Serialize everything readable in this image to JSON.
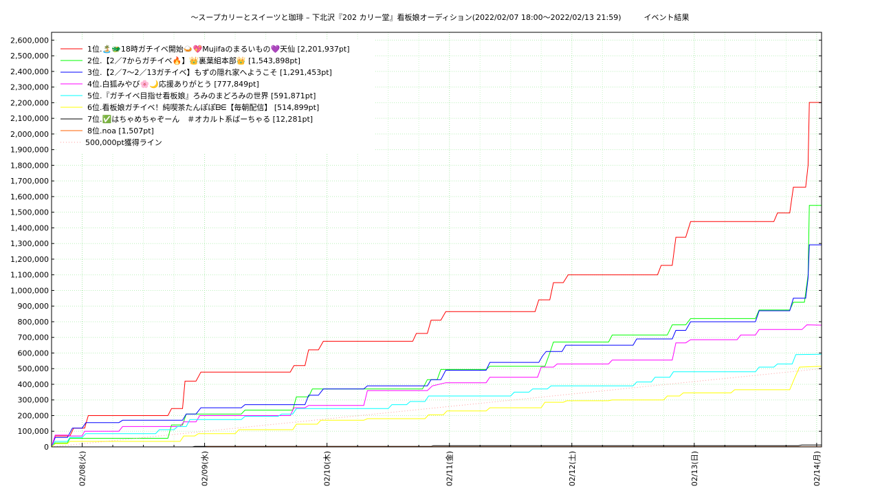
{
  "chart_data": {
    "type": "line",
    "title": "〜スープカリーとスイーツと珈琲 – 下北沢『202 カリー堂』看板娘オーディション(2022/02/07 18:00〜2022/02/13 21:59)　　　イベント結果",
    "xlabel": "",
    "ylabel": "",
    "x_ticks": [
      "02/08(火)",
      "02/09(水)",
      "02/10(木)",
      "02/11(金)",
      "02/12(土)",
      "02/13(日)",
      "02/14(月)"
    ],
    "y_ticks": [
      "0",
      "100,000",
      "200,000",
      "300,000",
      "400,000",
      "500,000",
      "600,000",
      "700,000",
      "800,000",
      "900,000",
      "1,000,000",
      "1,100,000",
      "1,200,000",
      "1,300,000",
      "1,400,000",
      "1,500,000",
      "1,600,000",
      "1,700,000",
      "1,800,000",
      "1,900,000",
      "2,000,000",
      "2,100,000",
      "2,200,000",
      "2,300,000",
      "2,400,000",
      "2,500,000",
      "2,600,000"
    ],
    "xlim_days": [
      -0.25,
      6.04
    ],
    "ylim": [
      0,
      2650000
    ],
    "grid": true,
    "legend_position": "top-left",
    "series": [
      {
        "name": "1位.🏝️🐲18時ガチイベ開始🍛💖Mujifaのまるいもの💜天仙 [2,201,937pt]",
        "color": "#ff0000",
        "points": [
          [
            -0.25,
            0
          ],
          [
            -0.22,
            70000
          ],
          [
            -0.1,
            70000
          ],
          [
            -0.07,
            120000
          ],
          [
            0.02,
            120000
          ],
          [
            0.05,
            200000
          ],
          [
            0.7,
            200000
          ],
          [
            0.73,
            245000
          ],
          [
            0.82,
            245000
          ],
          [
            0.84,
            420000
          ],
          [
            0.93,
            420000
          ],
          [
            0.97,
            478000
          ],
          [
            1.7,
            478000
          ],
          [
            1.73,
            520000
          ],
          [
            1.82,
            520000
          ],
          [
            1.85,
            620000
          ],
          [
            1.93,
            620000
          ],
          [
            1.97,
            675000
          ],
          [
            2.7,
            675000
          ],
          [
            2.73,
            725000
          ],
          [
            2.82,
            725000
          ],
          [
            2.85,
            810000
          ],
          [
            2.93,
            810000
          ],
          [
            2.97,
            865000
          ],
          [
            3.7,
            865000
          ],
          [
            3.73,
            940000
          ],
          [
            3.82,
            940000
          ],
          [
            3.85,
            1050000
          ],
          [
            3.93,
            1050000
          ],
          [
            3.97,
            1100000
          ],
          [
            4.7,
            1100000
          ],
          [
            4.73,
            1160000
          ],
          [
            4.82,
            1160000
          ],
          [
            4.85,
            1340000
          ],
          [
            4.93,
            1340000
          ],
          [
            4.97,
            1440000
          ],
          [
            5.65,
            1440000
          ],
          [
            5.68,
            1495000
          ],
          [
            5.78,
            1495000
          ],
          [
            5.81,
            1660000
          ],
          [
            5.91,
            1660000
          ],
          [
            5.93,
            1800000
          ],
          [
            5.94,
            2201937
          ],
          [
            6.04,
            2201937
          ]
        ]
      },
      {
        "name": "2位.【2／7からガチイベ🔥】👑裏葉組本部👑 [1,543,898pt]",
        "color": "#00ff00",
        "points": [
          [
            -0.25,
            0
          ],
          [
            -0.22,
            25000
          ],
          [
            -0.12,
            25000
          ],
          [
            -0.1,
            55000
          ],
          [
            0.7,
            55000
          ],
          [
            0.73,
            140000
          ],
          [
            0.82,
            140000
          ],
          [
            0.85,
            210000
          ],
          [
            1.3,
            210000
          ],
          [
            1.33,
            235000
          ],
          [
            1.72,
            235000
          ],
          [
            1.75,
            320000
          ],
          [
            1.85,
            320000
          ],
          [
            1.88,
            370000
          ],
          [
            2.78,
            370000
          ],
          [
            2.82,
            430000
          ],
          [
            2.9,
            430000
          ],
          [
            2.93,
            495000
          ],
          [
            3.3,
            495000
          ],
          [
            3.33,
            515000
          ],
          [
            3.78,
            515000
          ],
          [
            3.82,
            600000
          ],
          [
            3.85,
            670000
          ],
          [
            4.3,
            670000
          ],
          [
            4.33,
            715000
          ],
          [
            4.78,
            715000
          ],
          [
            4.82,
            780000
          ],
          [
            4.93,
            780000
          ],
          [
            4.97,
            820000
          ],
          [
            5.5,
            820000
          ],
          [
            5.53,
            875000
          ],
          [
            5.78,
            875000
          ],
          [
            5.81,
            925000
          ],
          [
            5.9,
            925000
          ],
          [
            5.93,
            1100000
          ],
          [
            5.94,
            1543898
          ],
          [
            6.04,
            1543898
          ]
        ]
      },
      {
        "name": "3位.【2／7〜2／13ガチイベ】もずの隠れ家へようこそ [1,291,453pt]",
        "color": "#0000ff",
        "points": [
          [
            -0.25,
            0
          ],
          [
            -0.22,
            60000
          ],
          [
            -0.12,
            60000
          ],
          [
            -0.08,
            120000
          ],
          [
            0.0,
            120000
          ],
          [
            0.03,
            155000
          ],
          [
            0.3,
            155000
          ],
          [
            0.33,
            170000
          ],
          [
            0.82,
            170000
          ],
          [
            0.85,
            210000
          ],
          [
            0.93,
            210000
          ],
          [
            0.97,
            250000
          ],
          [
            1.3,
            250000
          ],
          [
            1.33,
            270000
          ],
          [
            1.82,
            270000
          ],
          [
            1.85,
            330000
          ],
          [
            1.93,
            330000
          ],
          [
            1.97,
            370000
          ],
          [
            2.3,
            370000
          ],
          [
            2.33,
            390000
          ],
          [
            2.82,
            390000
          ],
          [
            2.85,
            430000
          ],
          [
            2.93,
            430000
          ],
          [
            2.97,
            490000
          ],
          [
            3.3,
            490000
          ],
          [
            3.33,
            540000
          ],
          [
            3.73,
            540000
          ],
          [
            3.76,
            580000
          ],
          [
            3.79,
            610000
          ],
          [
            3.92,
            610000
          ],
          [
            3.95,
            650000
          ],
          [
            4.5,
            650000
          ],
          [
            4.53,
            690000
          ],
          [
            4.82,
            690000
          ],
          [
            4.85,
            745000
          ],
          [
            4.93,
            745000
          ],
          [
            4.97,
            800000
          ],
          [
            5.5,
            800000
          ],
          [
            5.53,
            870000
          ],
          [
            5.78,
            870000
          ],
          [
            5.81,
            950000
          ],
          [
            5.91,
            950000
          ],
          [
            5.93,
            1080000
          ],
          [
            5.94,
            1291453
          ],
          [
            6.04,
            1291453
          ]
        ]
      },
      {
        "name": "4位.白狐みやび🌸🌙応援ありがとう [777,849pt]",
        "color": "#ff00ff",
        "points": [
          [
            -0.25,
            0
          ],
          [
            -0.22,
            75000
          ],
          [
            -0.12,
            75000
          ],
          [
            -0.1,
            70000
          ],
          [
            0.0,
            70000
          ],
          [
            0.02,
            100000
          ],
          [
            0.3,
            100000
          ],
          [
            0.33,
            130000
          ],
          [
            0.8,
            130000
          ],
          [
            0.83,
            160000
          ],
          [
            0.93,
            160000
          ],
          [
            0.96,
            200000
          ],
          [
            1.7,
            200000
          ],
          [
            1.73,
            250000
          ],
          [
            1.82,
            250000
          ],
          [
            1.85,
            265000
          ],
          [
            2.3,
            265000
          ],
          [
            2.33,
            360000
          ],
          [
            2.82,
            360000
          ],
          [
            2.86,
            390000
          ],
          [
            2.97,
            410000
          ],
          [
            3.3,
            410000
          ],
          [
            3.33,
            445000
          ],
          [
            3.72,
            445000
          ],
          [
            3.75,
            510000
          ],
          [
            3.85,
            510000
          ],
          [
            3.88,
            530000
          ],
          [
            4.3,
            530000
          ],
          [
            4.33,
            555000
          ],
          [
            4.82,
            555000
          ],
          [
            4.85,
            665000
          ],
          [
            4.93,
            665000
          ],
          [
            4.97,
            685000
          ],
          [
            5.35,
            685000
          ],
          [
            5.38,
            715000
          ],
          [
            5.5,
            715000
          ],
          [
            5.53,
            750000
          ],
          [
            5.88,
            750000
          ],
          [
            5.92,
            780000
          ],
          [
            6.04,
            777849
          ]
        ]
      },
      {
        "name": "5位.『ガチイベ目指せ看板娘』ろみのまどろみの世界 [591,871pt]",
        "color": "#00ffff",
        "points": [
          [
            -0.25,
            0
          ],
          [
            -0.22,
            35000
          ],
          [
            -0.12,
            35000
          ],
          [
            -0.1,
            60000
          ],
          [
            0.0,
            60000
          ],
          [
            0.03,
            85000
          ],
          [
            0.6,
            85000
          ],
          [
            0.63,
            110000
          ],
          [
            0.75,
            110000
          ],
          [
            0.78,
            130000
          ],
          [
            0.85,
            130000
          ],
          [
            0.88,
            175000
          ],
          [
            1.3,
            175000
          ],
          [
            1.33,
            195000
          ],
          [
            1.6,
            195000
          ],
          [
            1.63,
            210000
          ],
          [
            1.72,
            210000
          ],
          [
            1.75,
            245000
          ],
          [
            2.5,
            245000
          ],
          [
            2.53,
            270000
          ],
          [
            2.65,
            270000
          ],
          [
            2.68,
            290000
          ],
          [
            2.8,
            290000
          ],
          [
            2.83,
            325000
          ],
          [
            3.5,
            325000
          ],
          [
            3.53,
            350000
          ],
          [
            3.65,
            350000
          ],
          [
            3.68,
            370000
          ],
          [
            3.8,
            370000
          ],
          [
            3.83,
            390000
          ],
          [
            4.5,
            390000
          ],
          [
            4.53,
            415000
          ],
          [
            4.65,
            415000
          ],
          [
            4.68,
            445000
          ],
          [
            4.8,
            445000
          ],
          [
            4.83,
            480000
          ],
          [
            5.5,
            480000
          ],
          [
            5.53,
            510000
          ],
          [
            5.65,
            510000
          ],
          [
            5.68,
            530000
          ],
          [
            5.8,
            530000
          ],
          [
            5.83,
            590000
          ],
          [
            6.04,
            591871
          ]
        ]
      },
      {
        "name": "6位.看板娘ガチイベ！純喫茶たんぽぽᗷᗴ【毎朝配信】 [514,899pt]",
        "color": "#ffff00",
        "points": [
          [
            -0.25,
            0
          ],
          [
            -0.22,
            20000
          ],
          [
            -0.12,
            20000
          ],
          [
            -0.1,
            35000
          ],
          [
            0.8,
            35000
          ],
          [
            0.83,
            70000
          ],
          [
            0.92,
            70000
          ],
          [
            0.95,
            85000
          ],
          [
            1.25,
            85000
          ],
          [
            1.28,
            110000
          ],
          [
            1.72,
            110000
          ],
          [
            1.75,
            145000
          ],
          [
            1.92,
            145000
          ],
          [
            1.95,
            170000
          ],
          [
            2.3,
            170000
          ],
          [
            2.33,
            180000
          ],
          [
            2.8,
            180000
          ],
          [
            2.83,
            205000
          ],
          [
            2.95,
            205000
          ],
          [
            2.98,
            230000
          ],
          [
            3.3,
            230000
          ],
          [
            3.33,
            250000
          ],
          [
            3.75,
            250000
          ],
          [
            3.78,
            285000
          ],
          [
            3.93,
            285000
          ],
          [
            3.96,
            295000
          ],
          [
            4.3,
            295000
          ],
          [
            4.33,
            300000
          ],
          [
            4.75,
            300000
          ],
          [
            4.78,
            325000
          ],
          [
            4.88,
            325000
          ],
          [
            4.91,
            345000
          ],
          [
            5.3,
            345000
          ],
          [
            5.33,
            365000
          ],
          [
            5.78,
            365000
          ],
          [
            5.82,
            440000
          ],
          [
            5.86,
            510000
          ],
          [
            6.04,
            514899
          ]
        ]
      },
      {
        "name": "7位.✅はちゃめちゃぞーん　＃オカルト系ばーちゃる [12,281pt]",
        "color": "#000000",
        "points": [
          [
            -0.25,
            0
          ],
          [
            0.9,
            0
          ],
          [
            0.92,
            3000
          ],
          [
            2.85,
            3000
          ],
          [
            2.87,
            8000
          ],
          [
            5.85,
            8000
          ],
          [
            5.88,
            12281
          ],
          [
            6.04,
            12281
          ]
        ]
      },
      {
        "name": "8位.noa [1,507pt]",
        "color": "#ff6000",
        "points": [
          [
            -0.25,
            0
          ],
          [
            1.0,
            0
          ],
          [
            1.02,
            1507
          ],
          [
            6.04,
            1507
          ]
        ]
      },
      {
        "name": "500,000pt獲得ライン",
        "color": "#ff9999",
        "dotted": true,
        "points": [
          [
            -0.25,
            0
          ],
          [
            6.04,
            500000
          ]
        ]
      }
    ]
  }
}
